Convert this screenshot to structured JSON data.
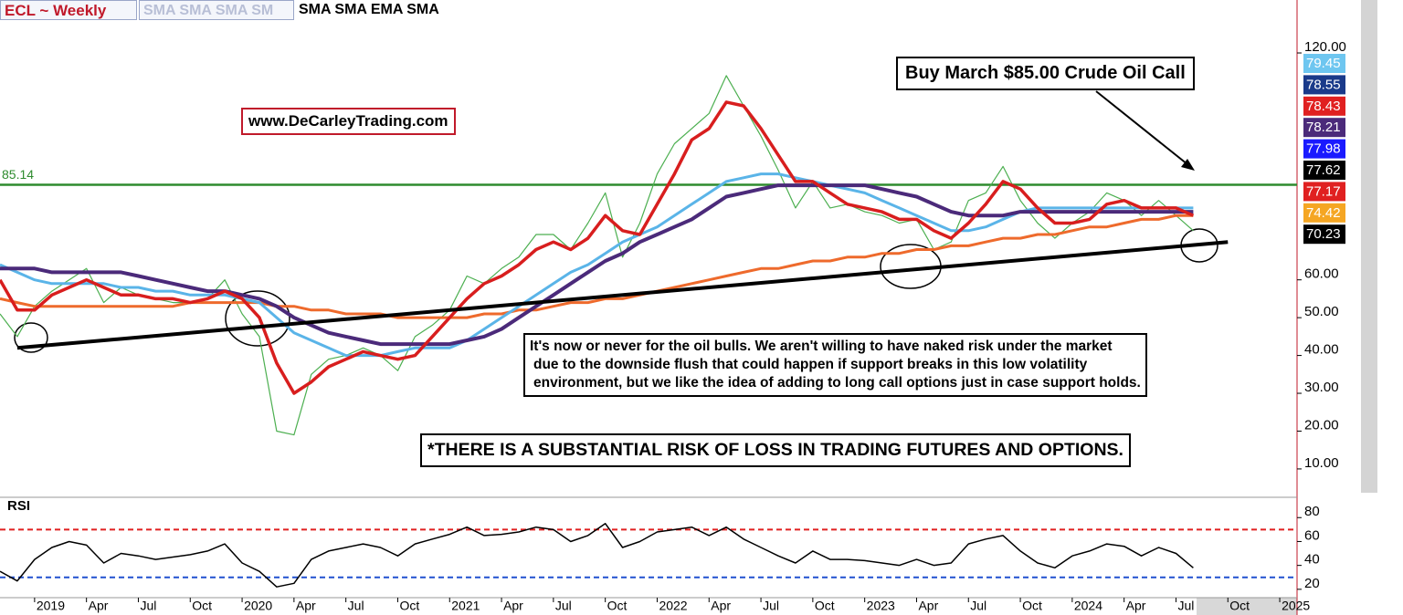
{
  "header": {
    "symbol": "ECL ~ Weekly",
    "studies_1": "SMA SMA SMA SM",
    "studies_2": "SMA SMA EMA SMA"
  },
  "chart_data": [
    {
      "type": "line",
      "x": [
        "2018-11",
        "2018-12",
        "2019-01",
        "2019-02",
        "2019-03",
        "2019-04",
        "2019-05",
        "2019-06",
        "2019-07",
        "2019-08",
        "2019-09",
        "2019-10",
        "2019-11",
        "2019-12",
        "2020-01",
        "2020-02",
        "2020-03",
        "2020-04",
        "2020-05",
        "2020-06",
        "2020-07",
        "2020-08",
        "2020-09",
        "2020-10",
        "2020-11",
        "2020-12",
        "2021-01",
        "2021-02",
        "2021-03",
        "2021-04",
        "2021-05",
        "2021-06",
        "2021-07",
        "2021-08",
        "2021-09",
        "2021-10",
        "2021-11",
        "2021-12",
        "2022-01",
        "2022-02",
        "2022-03",
        "2022-04",
        "2022-05",
        "2022-06",
        "2022-07",
        "2022-08",
        "2022-09",
        "2022-10",
        "2022-11",
        "2022-12",
        "2023-01",
        "2023-02",
        "2023-03",
        "2023-04",
        "2023-05",
        "2023-06",
        "2023-07",
        "2023-08",
        "2023-09",
        "2023-10",
        "2023-11",
        "2023-12",
        "2024-01",
        "2024-02",
        "2024-03",
        "2024-04",
        "2024-05",
        "2024-06",
        "2024-07",
        "2024-08"
      ],
      "series": [
        {
          "color": "#4caf50",
          "values": [
            51,
            45,
            53,
            57,
            60,
            63,
            54,
            58,
            56,
            55,
            54,
            54,
            55,
            60,
            51,
            45,
            20,
            19,
            35,
            39,
            40,
            42,
            40,
            36,
            45,
            48,
            52,
            61,
            59,
            63,
            66,
            72,
            72,
            68,
            75,
            83,
            66,
            75,
            88,
            96,
            100,
            104,
            114,
            106,
            98,
            89,
            79,
            86,
            79,
            80,
            78,
            77,
            75,
            76,
            68,
            70,
            81,
            83,
            90,
            81,
            75,
            71,
            75,
            78,
            83,
            81,
            77,
            81,
            77,
            73
          ]
        },
        {
          "color": "#ee6a2c",
          "values": [
            55,
            54,
            53,
            53,
            53,
            53,
            53,
            53,
            53,
            53,
            53,
            54,
            54,
            54,
            54,
            54,
            53,
            53,
            52,
            52,
            51,
            51,
            51,
            50,
            50,
            50,
            50,
            50,
            51,
            51,
            52,
            52,
            53,
            54,
            54,
            55,
            55,
            56,
            57,
            58,
            59,
            60,
            61,
            62,
            63,
            63,
            64,
            65,
            65,
            66,
            66,
            67,
            67,
            68,
            68,
            69,
            69,
            70,
            71,
            71,
            72,
            72,
            73,
            74,
            74,
            75,
            76,
            76,
            77,
            77
          ]
        },
        {
          "color": "#5ab4e8",
          "values": [
            64,
            62,
            60,
            59,
            59,
            59,
            59,
            58,
            58,
            57,
            57,
            56,
            56,
            56,
            55,
            54,
            50,
            46,
            44,
            42,
            40,
            40,
            40,
            41,
            42,
            42,
            42,
            44,
            47,
            50,
            53,
            56,
            59,
            62,
            64,
            67,
            70,
            72,
            74,
            77,
            80,
            83,
            86,
            87,
            88,
            88,
            87,
            86,
            85,
            84,
            83,
            81,
            79,
            77,
            75,
            73,
            73,
            74,
            76,
            78,
            79,
            79,
            79,
            79,
            79,
            79,
            79,
            79,
            79,
            79
          ]
        },
        {
          "color": "#4b2a7a",
          "values": [
            63,
            63,
            63,
            62,
            62,
            62,
            62,
            62,
            61,
            60,
            59,
            58,
            57,
            57,
            56,
            55,
            53,
            50,
            48,
            46,
            45,
            44,
            43,
            43,
            43,
            43,
            43,
            44,
            45,
            47,
            50,
            53,
            56,
            59,
            62,
            65,
            67,
            70,
            72,
            74,
            76,
            79,
            82,
            83,
            84,
            85,
            85,
            85,
            85,
            85,
            85,
            84,
            83,
            82,
            80,
            78,
            77,
            77,
            77,
            78,
            78,
            78,
            78,
            78,
            78,
            78,
            78,
            78,
            78,
            78
          ]
        },
        {
          "color": "#d81e1e",
          "values": [
            60,
            52,
            52,
            56,
            58,
            60,
            58,
            56,
            56,
            55,
            55,
            54,
            55,
            57,
            55,
            50,
            38,
            30,
            33,
            37,
            39,
            41,
            40,
            39,
            40,
            45,
            50,
            55,
            59,
            61,
            64,
            68,
            70,
            68,
            71,
            77,
            73,
            72,
            80,
            88,
            97,
            100,
            107,
            106,
            100,
            93,
            86,
            86,
            83,
            80,
            79,
            78,
            76,
            76,
            73,
            71,
            75,
            80,
            86,
            84,
            79,
            75,
            75,
            76,
            80,
            81,
            79,
            79,
            79,
            77
          ]
        }
      ],
      "xlim": [
        "2018-11",
        "2025-02"
      ],
      "ylim": [
        2.5,
        134
      ],
      "yticks": [
        {
          "value": 120,
          "label": "120.00"
        },
        {
          "value": 60,
          "label": "60.00"
        },
        {
          "value": 50,
          "label": "50.00"
        },
        {
          "value": 40,
          "label": "40.00"
        },
        {
          "value": 30,
          "label": "30.00"
        },
        {
          "value": 20,
          "label": "20.00"
        },
        {
          "value": 10,
          "label": "10.00"
        }
      ],
      "hline": {
        "value": 85.14,
        "color": "#2e8b2e"
      },
      "trendline": {
        "x": [
          "2018-12",
          "2024-10"
        ],
        "y": [
          42,
          70
        ]
      },
      "price_tags": [
        {
          "value": 79.45,
          "color": "#6ec6f0"
        },
        {
          "value": 78.55,
          "color": "#1a3a8a"
        },
        {
          "value": 78.43,
          "color": "#e02020"
        },
        {
          "value": 78.21,
          "color": "#4b2a7a"
        },
        {
          "value": 77.98,
          "color": "#1a1aff"
        },
        {
          "value": 77.62,
          "color": "#000000"
        },
        {
          "value": 77.17,
          "color": "#e02020"
        },
        {
          "value": 74.42,
          "color": "#f5a623"
        },
        {
          "value": 70.23,
          "color": "#000000"
        }
      ],
      "annotations": {
        "buy": "Buy March $85.00 Crude Oil Call",
        "website": "www.DeCarleyTrading.com",
        "note": [
          "It's now or never for the oil bulls. We aren't willing to have naked risk under the market",
          "due to the downside flush that could happen if support breaks in this low volatility",
          "environment, but we like the idea of adding to long call options just in case support holds."
        ],
        "risk": "*THERE IS A SUBSTANTIAL RISK OF LOSS IN TRADING FUTURES AND OPTIONS."
      }
    },
    {
      "type": "line",
      "title": "RSI",
      "x": [
        "2018-11",
        "2018-12",
        "2019-01",
        "2019-02",
        "2019-03",
        "2019-04",
        "2019-05",
        "2019-06",
        "2019-07",
        "2019-08",
        "2019-09",
        "2019-10",
        "2019-11",
        "2019-12",
        "2020-01",
        "2020-02",
        "2020-03",
        "2020-04",
        "2020-05",
        "2020-06",
        "2020-07",
        "2020-08",
        "2020-09",
        "2020-10",
        "2020-11",
        "2020-12",
        "2021-01",
        "2021-02",
        "2021-03",
        "2021-04",
        "2021-05",
        "2021-06",
        "2021-07",
        "2021-08",
        "2021-09",
        "2021-10",
        "2021-11",
        "2021-12",
        "2022-01",
        "2022-02",
        "2022-03",
        "2022-04",
        "2022-05",
        "2022-06",
        "2022-07",
        "2022-08",
        "2022-09",
        "2022-10",
        "2022-11",
        "2022-12",
        "2023-01",
        "2023-02",
        "2023-03",
        "2023-04",
        "2023-05",
        "2023-06",
        "2023-07",
        "2023-08",
        "2023-09",
        "2023-10",
        "2023-11",
        "2023-12",
        "2024-01",
        "2024-02",
        "2024-03",
        "2024-04",
        "2024-05",
        "2024-06",
        "2024-07",
        "2024-08"
      ],
      "series": [
        {
          "color": "#000000",
          "values": [
            35,
            27,
            45,
            55,
            60,
            57,
            42,
            50,
            48,
            45,
            47,
            49,
            52,
            58,
            42,
            35,
            22,
            25,
            45,
            52,
            55,
            58,
            55,
            48,
            58,
            62,
            66,
            72,
            65,
            66,
            68,
            72,
            70,
            60,
            65,
            75,
            55,
            60,
            68,
            70,
            72,
            65,
            72,
            62,
            55,
            48,
            42,
            52,
            45,
            45,
            44,
            42,
            40,
            45,
            40,
            42,
            58,
            62,
            65,
            52,
            42,
            38,
            48,
            52,
            58,
            56,
            48,
            55,
            50,
            38
          ]
        }
      ],
      "xlim": [
        "2018-11",
        "2025-02"
      ],
      "ylim": [
        13,
        97
      ],
      "yticks": [
        80,
        60,
        40,
        20
      ],
      "levels": [
        {
          "value": 70,
          "color": "#e02020"
        },
        {
          "value": 30,
          "color": "#2050d0"
        }
      ],
      "xticks": [
        {
          "value": "2019-01",
          "label": "2019"
        },
        {
          "value": "2019-04",
          "label": "Apr"
        },
        {
          "value": "2019-07",
          "label": "Jul"
        },
        {
          "value": "2019-10",
          "label": "Oct"
        },
        {
          "value": "2020-01",
          "label": "2020"
        },
        {
          "value": "2020-04",
          "label": "Apr"
        },
        {
          "value": "2020-07",
          "label": "Jul"
        },
        {
          "value": "2020-10",
          "label": "Oct"
        },
        {
          "value": "2021-01",
          "label": "2021"
        },
        {
          "value": "2021-04",
          "label": "Apr"
        },
        {
          "value": "2021-07",
          "label": "Jul"
        },
        {
          "value": "2021-10",
          "label": "Oct"
        },
        {
          "value": "2022-01",
          "label": "2022"
        },
        {
          "value": "2022-04",
          "label": "Apr"
        },
        {
          "value": "2022-07",
          "label": "Jul"
        },
        {
          "value": "2022-10",
          "label": "Oct"
        },
        {
          "value": "2023-01",
          "label": "2023"
        },
        {
          "value": "2023-04",
          "label": "Apr"
        },
        {
          "value": "2023-07",
          "label": "Jul"
        },
        {
          "value": "2023-10",
          "label": "Oct"
        },
        {
          "value": "2024-01",
          "label": "2024"
        },
        {
          "value": "2024-04",
          "label": "Apr"
        },
        {
          "value": "2024-07",
          "label": "Jul"
        },
        {
          "value": "2024-10",
          "label": "Oct"
        },
        {
          "value": "2025-01",
          "label": "2025"
        }
      ]
    }
  ]
}
